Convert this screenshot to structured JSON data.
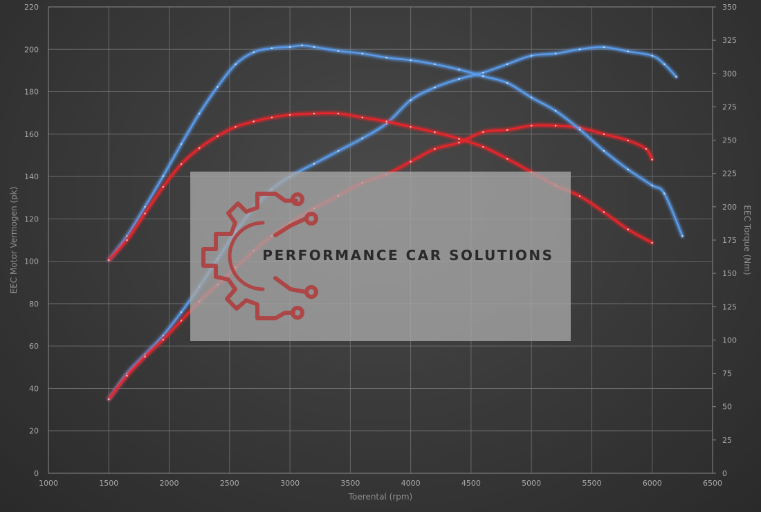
{
  "colors": {
    "stock": "#5a9bea",
    "tuned": "#e8252a",
    "watermark_logo": "#b23a3a",
    "watermark_panel": "#a8a8a8"
  },
  "watermark": {
    "text": "PERFORMANCE CAR SOLUTIONS",
    "logo_icon": "gear-circuit-logo-icon"
  },
  "chart_data": {
    "type": "line",
    "xlabel": "Toerental (rpm)",
    "ylabel": "EEC Motor Vermogen (pk)",
    "y2label": "EEC Torque (Nm)",
    "xlim": [
      1000,
      6500
    ],
    "ylim": [
      0,
      220
    ],
    "y2lim": [
      0,
      350
    ],
    "x_ticks": [
      1000,
      1500,
      2000,
      2500,
      3000,
      3500,
      4000,
      4500,
      5000,
      5500,
      6000,
      6500
    ],
    "y_ticks": [
      0,
      20,
      40,
      60,
      80,
      100,
      120,
      140,
      160,
      180,
      200,
      220
    ],
    "y2_ticks": [
      0,
      25,
      50,
      75,
      100,
      125,
      150,
      175,
      200,
      225,
      250,
      275,
      300,
      325,
      350
    ],
    "grid": true,
    "series": [
      {
        "key": "stock_power",
        "axis": "left",
        "color": "#5a9bea",
        "x": [
          1500,
          1650,
          1800,
          1950,
          2100,
          2250,
          2400,
          2550,
          2700,
          2850,
          3000,
          3200,
          3400,
          3600,
          3800,
          4000,
          4200,
          4400,
          4600,
          4800,
          5000,
          5200,
          5400,
          5600,
          5800,
          6000,
          6100,
          6200
        ],
        "y": [
          35,
          47,
          56,
          65,
          76,
          88,
          101,
          114,
          125,
          134,
          140,
          146,
          152,
          158,
          165,
          176,
          182,
          186,
          189,
          193,
          197,
          198,
          200,
          201,
          199,
          197,
          193,
          187
        ]
      },
      {
        "key": "tuned_power",
        "axis": "left",
        "color": "#e8252a",
        "x": [
          1500,
          1650,
          1800,
          1950,
          2100,
          2250,
          2400,
          2550,
          2700,
          2850,
          3000,
          3200,
          3400,
          3600,
          3800,
          4000,
          4200,
          4400,
          4600,
          4800,
          5000,
          5200,
          5400,
          5600,
          5800,
          5950,
          6000
        ],
        "y": [
          35,
          46,
          55,
          63,
          72,
          81,
          89,
          97,
          105,
          112,
          118,
          125,
          131,
          137,
          141,
          147,
          153,
          156,
          161,
          162,
          164,
          164,
          163,
          160,
          157,
          153,
          148
        ]
      },
      {
        "key": "stock_torque",
        "axis": "right",
        "color": "#5a9bea",
        "x": [
          1500,
          1650,
          1800,
          1950,
          2100,
          2250,
          2400,
          2550,
          2700,
          2850,
          3000,
          3100,
          3200,
          3400,
          3600,
          3800,
          4000,
          4200,
          4400,
          4600,
          4800,
          5000,
          5200,
          5400,
          5600,
          5800,
          6000,
          6100,
          6250
        ],
        "y": [
          160,
          178,
          200,
          223,
          247,
          270,
          290,
          307,
          316,
          319,
          320,
          321,
          320,
          317,
          315,
          312,
          310,
          307,
          303,
          298,
          293,
          282,
          272,
          258,
          242,
          228,
          216,
          210,
          178
        ]
      },
      {
        "key": "tuned_torque",
        "axis": "right",
        "color": "#e8252a",
        "x": [
          1500,
          1650,
          1800,
          1950,
          2100,
          2250,
          2400,
          2550,
          2700,
          2850,
          3000,
          3200,
          3400,
          3600,
          3800,
          4000,
          4200,
          4400,
          4600,
          4800,
          5000,
          5200,
          5400,
          5600,
          5800,
          6000
        ],
        "y": [
          160,
          175,
          195,
          215,
          232,
          244,
          253,
          260,
          264,
          267,
          269,
          270,
          270,
          267,
          264,
          260,
          256,
          251,
          245,
          236,
          226,
          216,
          208,
          196,
          183,
          173
        ]
      }
    ]
  }
}
